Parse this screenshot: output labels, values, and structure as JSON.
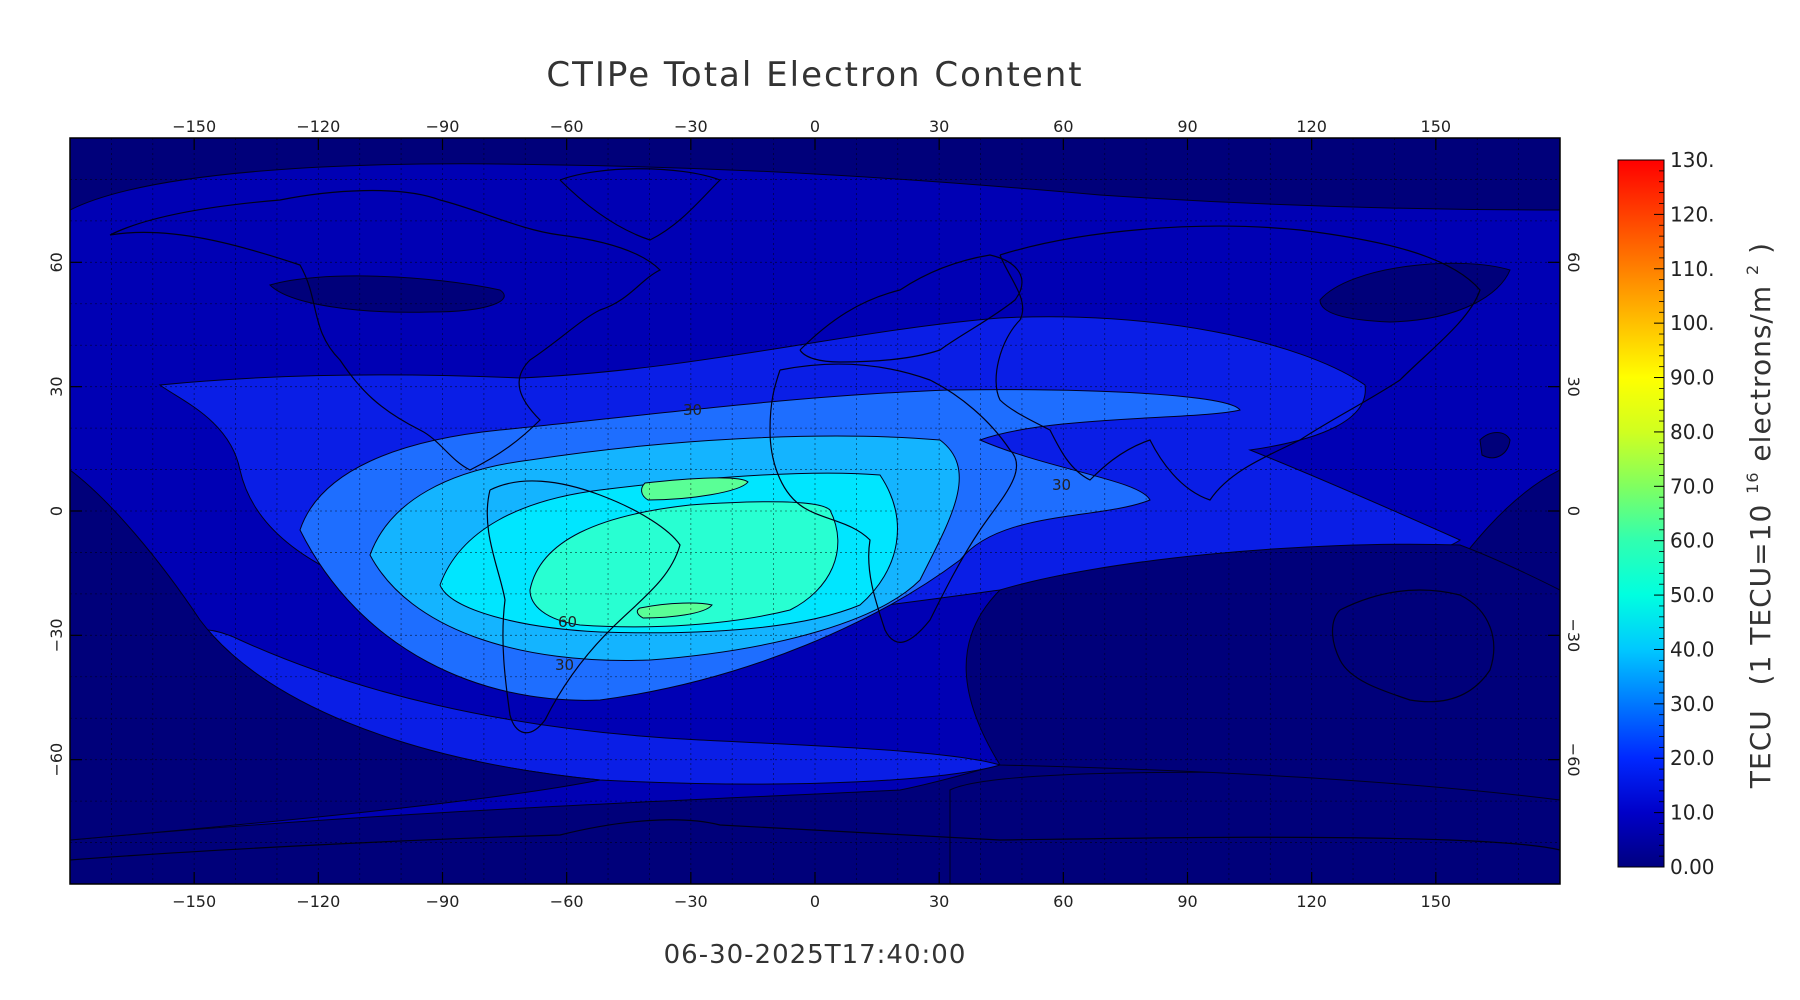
{
  "title": "CTIPe Total Electron Content",
  "timestamp": "06-30-2025T17:40:00",
  "colorbar": {
    "label_prefix": "TECU",
    "label_unit": "(1 TECU=10",
    "label_exp": "16",
    "label_tail": "electrons/m",
    "label_sq": "2",
    "label_close": ")",
    "ticks": [
      "0.00",
      "10.0",
      "20.0",
      "30.0",
      "40.0",
      "50.0",
      "60.0",
      "70.0",
      "80.0",
      "90.0",
      "100.",
      "110.",
      "120.",
      "130."
    ],
    "stops": [
      "#000080",
      "#0000c8",
      "#0028ff",
      "#0078ff",
      "#00c8ff",
      "#00ffe0",
      "#30ffb0",
      "#80ff60",
      "#d0ff20",
      "#ffff00",
      "#ffc000",
      "#ff8000",
      "#ff4000",
      "#ff0000"
    ]
  },
  "chart_data": {
    "type": "heatmap",
    "title": "CTIPe Total Electron Content",
    "x_ticks": [
      "-150",
      "-120",
      "-90",
      "-60",
      "-30",
      "0",
      "30",
      "60",
      "90",
      "120",
      "150"
    ],
    "y_ticks": [
      "60",
      "30",
      "0",
      "-30",
      "-60"
    ],
    "x_range": [
      -180,
      180
    ],
    "y_range": [
      -90,
      90
    ],
    "contour_labels": [
      "30",
      "30",
      "60",
      "30"
    ],
    "levels": [
      0,
      10,
      20,
      30,
      40,
      50,
      60,
      70
    ],
    "level_colors": [
      "#00007a",
      "#0000b4",
      "#0a1ee6",
      "#1e6eff",
      "#14b4ff",
      "#00e6ff",
      "#28ffd2",
      "#5aff96"
    ],
    "grid": true,
    "colorbar_range": [
      0,
      130
    ]
  }
}
